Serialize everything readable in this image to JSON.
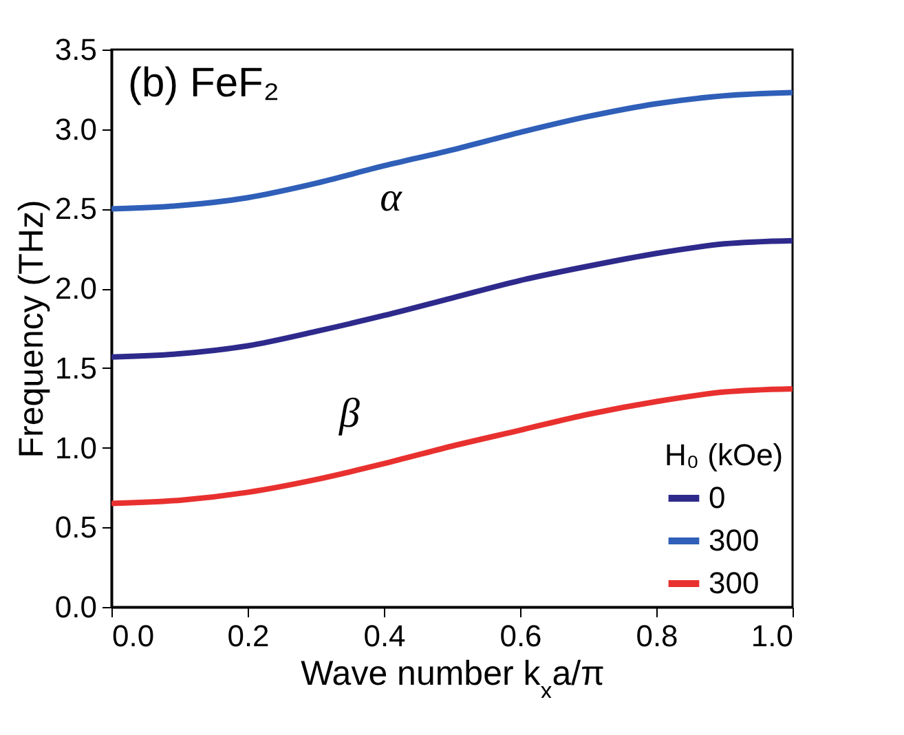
{
  "chart_data": {
    "type": "line",
    "title": "(b) FeF₂",
    "xlabel": "Wave number k$_{x}$a/π",
    "ylabel": "Frequency (THz)",
    "legend_title": "H₀ (kOe)",
    "legend": "bottom right",
    "x": [
      0,
      0.1,
      0.2,
      0.3,
      0.4,
      0.5,
      0.6,
      0.7,
      0.8,
      0.9,
      1.0
    ],
    "series": [
      {
        "name": "0",
        "color": "#2e2a8c",
        "values": [
          1.57,
          1.59,
          1.64,
          1.73,
          1.83,
          1.94,
          2.05,
          2.14,
          2.22,
          2.28,
          2.3
        ]
      },
      {
        "name": "300",
        "color": "#2f5fb8",
        "values": [
          2.5,
          2.52,
          2.57,
          2.66,
          2.77,
          2.87,
          2.98,
          3.08,
          3.16,
          3.21,
          3.23
        ]
      },
      {
        "name": "300",
        "color": "#e8312f",
        "values": [
          0.65,
          0.67,
          0.72,
          0.8,
          0.9,
          1.01,
          1.11,
          1.21,
          1.29,
          1.35,
          1.37
        ]
      }
    ],
    "annotations": [
      "α",
      "β"
    ],
    "xlim": [
      0,
      1.0
    ],
    "ylim": [
      0,
      3.5
    ],
    "xticks": [
      {
        "value": 0,
        "label": "0.0"
      },
      0.2,
      0.4,
      0.6,
      0.8,
      {
        "value": 1,
        "label": "1.0"
      }
    ],
    "yticks": [
      {
        "value": 0,
        "label": "0.0"
      },
      0.5,
      {
        "value": 1,
        "label": "1.0"
      },
      1.5,
      {
        "value": 2,
        "label": "2.0"
      },
      2.5,
      {
        "value": 3,
        "label": "3.0"
      },
      3.5
    ],
    "grid": false,
    "marker": "none",
    "line_style": "solid"
  }
}
